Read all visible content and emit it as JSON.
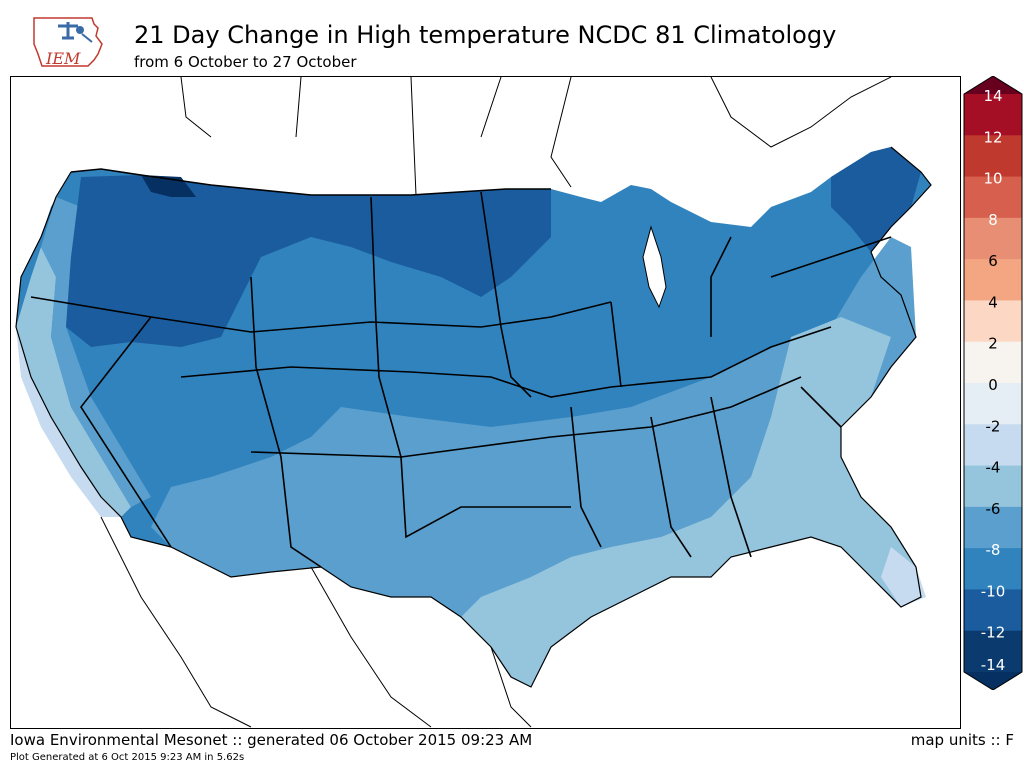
{
  "header": {
    "logo_text": "IEM",
    "title": "21 Day Change in High temperature NCDC 81 Climatology",
    "subtitle": "from 6 October to 27 October"
  },
  "footer": {
    "left": "Iowa Environmental Mesonet :: generated 06 October 2015 09:23 AM",
    "right": "map units :: F",
    "note": "Plot Generated at 6 Oct 2015 9:23 AM in 5.62s"
  },
  "legend": {
    "labels": [
      "14",
      "12",
      "10",
      "8",
      "6",
      "4",
      "2",
      "0",
      "-2",
      "-4",
      "-6",
      "-8",
      "-10",
      "-12",
      "-14"
    ],
    "colors": [
      "#67001f",
      "#a50f26",
      "#c0392f",
      "#d6604d",
      "#e88e74",
      "#f4a582",
      "#fbd7c4",
      "#f7f4f0",
      "#e5eef4",
      "#c6dbef",
      "#95c4dd",
      "#5a9fcd",
      "#3183be",
      "#1a5c9e",
      "#0a3a6e",
      "#053061"
    ]
  },
  "map_regions": [
    {
      "name": "northern-rockies-plains",
      "value_f": -12,
      "color": "#1a5c9e"
    },
    {
      "name": "northwest-core",
      "value_f": -14,
      "color": "#053061"
    },
    {
      "name": "central-us",
      "value_f": -10,
      "color": "#3183be"
    },
    {
      "name": "south-central",
      "value_f": -8,
      "color": "#5a9fcd"
    },
    {
      "name": "southeast-coast",
      "value_f": -6,
      "color": "#95c4dd"
    },
    {
      "name": "florida-coastal-ca",
      "value_f": -4,
      "color": "#c6dbef"
    }
  ]
}
